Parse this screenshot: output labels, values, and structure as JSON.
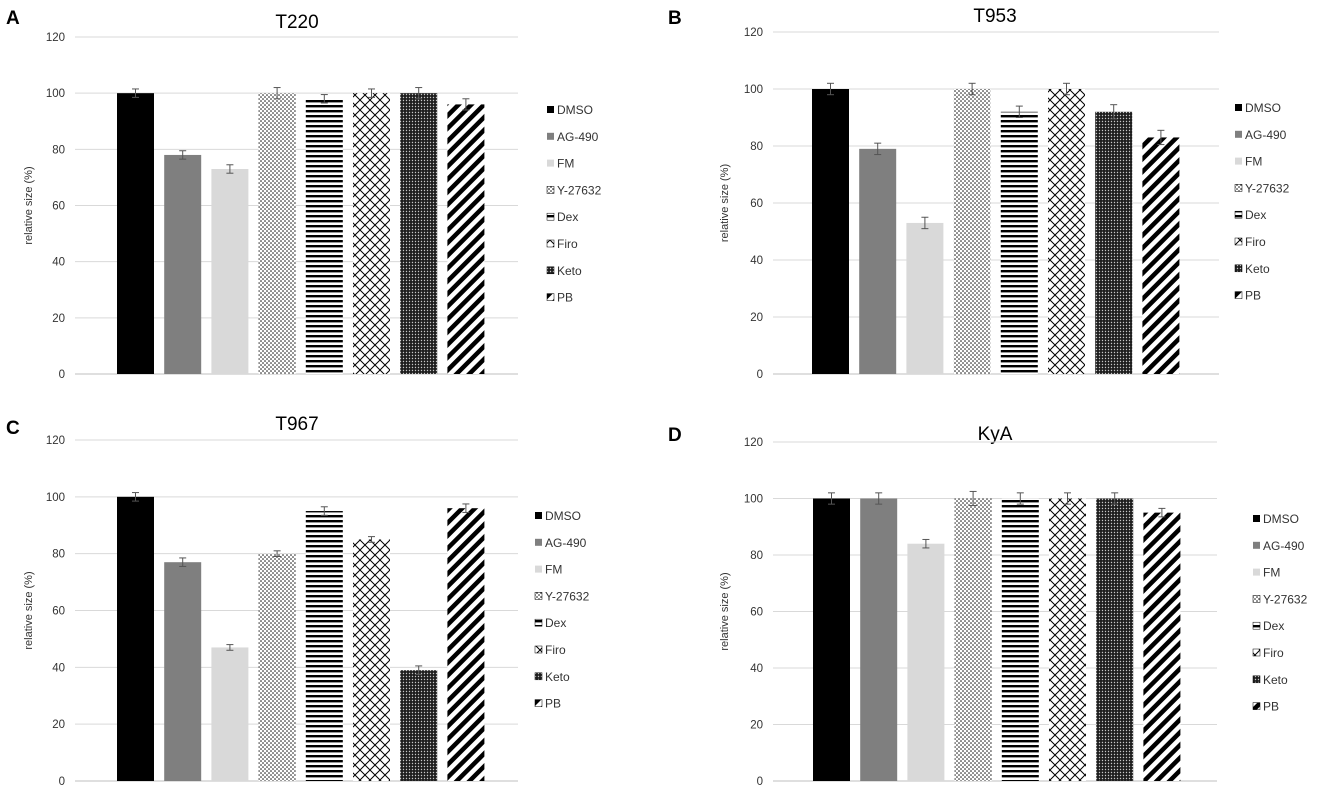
{
  "figure": {
    "ylabel": "relative size (%)",
    "yticks": [
      0,
      20,
      40,
      60,
      80,
      100,
      120
    ],
    "ylim": [
      0,
      120
    ]
  },
  "chart_data": [
    {
      "type": "bar",
      "panel_label": "A",
      "title": "T220",
      "ylabel": "relative size (%)",
      "ylim": [
        0,
        120
      ],
      "yticks": [
        0,
        20,
        40,
        60,
        80,
        100,
        120
      ],
      "categories": [
        "DMSO",
        "AG-490",
        "FM",
        "Y-27632",
        "Dex",
        "Firo",
        "Keto",
        "PB"
      ],
      "values": [
        100,
        78,
        73,
        100,
        98,
        100,
        100,
        96
      ],
      "errors": [
        1.5,
        1.5,
        1.5,
        2,
        1.5,
        1.5,
        2,
        2
      ],
      "legend": [
        "DMSO",
        "AG-490",
        "FM",
        "Y-27632",
        "Dex",
        "Firo",
        "Keto",
        "PB"
      ]
    },
    {
      "type": "bar",
      "panel_label": "B",
      "title": "T953",
      "ylabel": "relative size (%)",
      "ylim": [
        0,
        120
      ],
      "yticks": [
        0,
        20,
        40,
        60,
        80,
        100,
        120
      ],
      "categories": [
        "DMSO",
        "AG-490",
        "FM",
        "Y-27632",
        "Dex",
        "Firo",
        "Keto",
        "PB"
      ],
      "values": [
        100,
        79,
        53,
        100,
        92,
        100,
        92,
        83
      ],
      "errors": [
        2,
        2,
        2,
        2,
        2,
        2,
        2.5,
        2.5
      ],
      "legend": [
        "DMSO",
        "AG-490",
        "FM",
        "Y-27632",
        "Dex",
        "Firo",
        "Keto",
        "PB"
      ]
    },
    {
      "type": "bar",
      "panel_label": "C",
      "title": "T967",
      "ylabel": "relative size (%)",
      "ylim": [
        0,
        120
      ],
      "yticks": [
        0,
        20,
        40,
        60,
        80,
        100,
        120
      ],
      "categories": [
        "DMSO",
        "AG-490",
        "FM",
        "Y-27632",
        "Dex",
        "Firo",
        "Keto",
        "PB"
      ],
      "values": [
        100,
        77,
        47,
        80,
        95,
        85,
        39,
        96
      ],
      "errors": [
        1.5,
        1.5,
        1,
        1,
        1.5,
        1,
        1.5,
        1.5
      ],
      "legend": [
        "DMSO",
        "AG-490",
        "FM",
        "Y-27632",
        "Dex",
        "Firo",
        "Keto",
        "PB"
      ]
    },
    {
      "type": "bar",
      "panel_label": "D",
      "title": "KyA",
      "ylabel": "relative size (%)",
      "ylim": [
        0,
        120
      ],
      "yticks": [
        0,
        20,
        40,
        60,
        80,
        100,
        120
      ],
      "categories": [
        "DMSO",
        "AG-490",
        "FM",
        "Y-27632",
        "Dex",
        "Firo",
        "Keto",
        "PB"
      ],
      "values": [
        100,
        100,
        84,
        100,
        100,
        100,
        100,
        95
      ],
      "errors": [
        2,
        2,
        1.5,
        2.5,
        2,
        2,
        2,
        1.5
      ],
      "legend": [
        "DMSO",
        "AG-490",
        "FM",
        "Y-27632",
        "Dex",
        "Firo",
        "Keto",
        "PB"
      ]
    }
  ]
}
